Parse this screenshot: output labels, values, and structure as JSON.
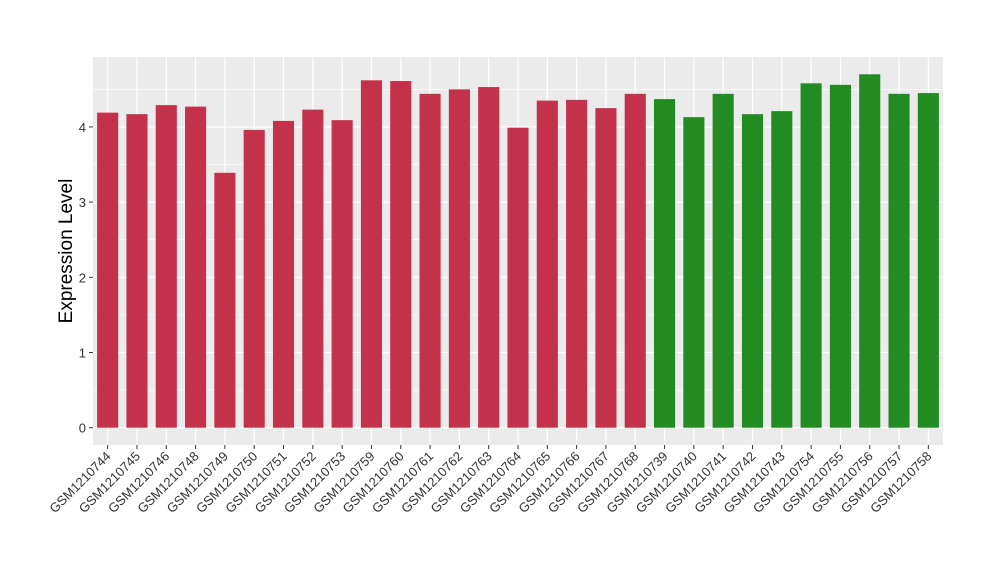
{
  "chart_data": {
    "type": "bar",
    "title": "",
    "xlabel": "",
    "ylabel": "Expression Level",
    "ylim": [
      -0.23,
      4.93
    ],
    "yticks": [
      0,
      1,
      2,
      3,
      4
    ],
    "grid": true,
    "legend": "none",
    "categories": [
      "GSM1210744",
      "GSM1210745",
      "GSM1210746",
      "GSM1210748",
      "GSM1210749",
      "GSM1210750",
      "GSM1210751",
      "GSM1210752",
      "GSM1210753",
      "GSM1210759",
      "GSM1210760",
      "GSM1210761",
      "GSM1210762",
      "GSM1210763",
      "GSM1210764",
      "GSM1210765",
      "GSM1210766",
      "GSM1210767",
      "GSM1210768",
      "GSM1210739",
      "GSM1210740",
      "GSM1210741",
      "GSM1210742",
      "GSM1210743",
      "GSM1210754",
      "GSM1210755",
      "GSM1210756",
      "GSM1210757",
      "GSM1210758"
    ],
    "values": [
      4.19,
      4.17,
      4.29,
      4.27,
      3.39,
      3.96,
      4.08,
      4.23,
      4.09,
      4.62,
      4.61,
      4.44,
      4.5,
      4.53,
      3.99,
      4.35,
      4.36,
      4.25,
      4.44,
      4.37,
      4.13,
      4.44,
      4.17,
      4.21,
      4.58,
      4.56,
      4.7,
      4.44,
      4.45
    ],
    "groups": [
      "a",
      "a",
      "a",
      "a",
      "a",
      "a",
      "a",
      "a",
      "a",
      "a",
      "a",
      "a",
      "a",
      "a",
      "a",
      "a",
      "a",
      "a",
      "a",
      "b",
      "b",
      "b",
      "b",
      "b",
      "b",
      "b",
      "b",
      "b",
      "b"
    ],
    "colors": {
      "a": "#C3314A",
      "b": "#228B22",
      "panel": "#EBEBEB",
      "grid": "#FFFFFF"
    }
  }
}
